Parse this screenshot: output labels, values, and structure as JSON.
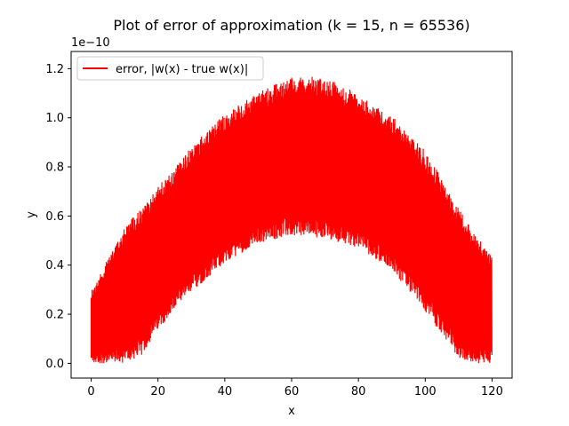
{
  "chart_data": {
    "type": "line",
    "title": "Plot of error of approximation (k = 15, n = 65536)",
    "xlabel": "x",
    "ylabel": "y",
    "y_offset_label": "1e−10",
    "y_scale_factor": 1e-10,
    "xlim": [
      -6,
      126
    ],
    "ylim": [
      -0.06,
      1.27
    ],
    "x_ticks": [
      0,
      20,
      40,
      60,
      80,
      100,
      120
    ],
    "y_ticks": [
      0.0,
      0.2,
      0.4,
      0.6,
      0.8,
      1.0,
      1.2
    ],
    "x_tick_labels": [
      "0",
      "20",
      "40",
      "60",
      "80",
      "100",
      "120"
    ],
    "y_tick_labels": [
      "0.0",
      "0.2",
      "0.4",
      "0.6",
      "0.8",
      "1.0",
      "1.2"
    ],
    "grid": false,
    "legend_position": "top-left",
    "series": [
      {
        "name": "error, |w(x) - true w(x)|",
        "color": "#ff0000",
        "x_range": [
          0,
          120
        ],
        "n_points": 65536,
        "envelope": {
          "x": [
            0,
            5,
            10,
            15,
            20,
            30,
            40,
            50,
            60,
            70,
            80,
            90,
            100,
            110,
            115,
            120
          ],
          "upper": [
            0.29,
            0.42,
            0.56,
            0.63,
            0.71,
            0.88,
            1.01,
            1.1,
            1.16,
            1.16,
            1.09,
            1.0,
            0.86,
            0.63,
            0.52,
            0.43
          ],
          "lower": [
            0.0,
            0.0,
            0.0,
            0.03,
            0.14,
            0.29,
            0.41,
            0.49,
            0.52,
            0.51,
            0.47,
            0.38,
            0.21,
            0.02,
            0.0,
            0.0
          ]
        }
      }
    ]
  }
}
